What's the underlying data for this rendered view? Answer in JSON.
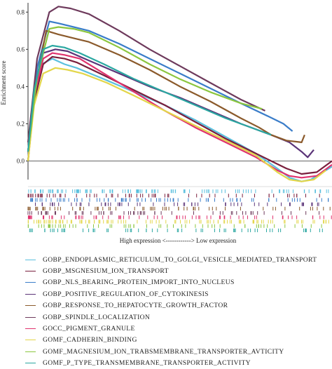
{
  "chart_data": {
    "type": "line",
    "title": "",
    "ylabel": "Enrichment score",
    "xlabel": "High expression <------------> Low expression",
    "ylim": [
      -0.1,
      0.85
    ],
    "y_ticks": [
      "0.0",
      "0.2",
      "0.4",
      "0.6",
      "0.8"
    ],
    "y_tick_values": [
      0.0,
      0.2,
      0.4,
      0.6,
      0.8
    ],
    "x_range": [
      0,
      1
    ],
    "zero_line": true,
    "legend_placement": "bottom",
    "series": [
      {
        "name": "GOBP_ENDOPLASMIC_RETICULUM_TO_GOLGI_VESICLE_MEDIATED_TRANSPORT",
        "color": "#5bc0de",
        "x": [
          0,
          0.02,
          0.045,
          0.08,
          0.12,
          0.16,
          0.25,
          0.35,
          0.45,
          0.55,
          0.65,
          0.75,
          0.82,
          0.86,
          0.9,
          0.93,
          0.97,
          1.0
        ],
        "y": [
          0,
          0.35,
          0.52,
          0.55,
          0.52,
          0.5,
          0.44,
          0.37,
          0.3,
          0.22,
          0.13,
          0.04,
          -0.04,
          -0.09,
          -0.11,
          -0.1,
          -0.06,
          -0.03
        ]
      },
      {
        "name": "GOBP_MSGNESIUM_ION_TRANSPORT",
        "color": "#7a1f3d",
        "x": [
          0,
          0.02,
          0.05,
          0.08,
          0.12,
          0.16,
          0.25,
          0.35,
          0.45,
          0.55,
          0.65,
          0.75,
          0.85,
          0.9,
          0.95,
          1.0
        ],
        "y": [
          0,
          0.32,
          0.52,
          0.56,
          0.55,
          0.53,
          0.46,
          0.38,
          0.3,
          0.21,
          0.12,
          0.04,
          -0.04,
          -0.07,
          -0.06,
          0.0
        ]
      },
      {
        "name": "GOBP_NLS_BEARING_PROTEIN_IMPORT_INTO_NUCLEUS",
        "color": "#3a7dc9",
        "x": [
          0,
          0.03,
          0.07,
          0.1,
          0.15,
          0.2,
          0.3,
          0.4,
          0.5,
          0.6,
          0.7,
          0.79,
          0.84,
          0.87
        ],
        "y": [
          0.05,
          0.5,
          0.75,
          0.74,
          0.72,
          0.7,
          0.63,
          0.55,
          0.47,
          0.39,
          0.31,
          0.24,
          0.2,
          0.16
        ]
      },
      {
        "name": "GOBP_POSITIVE_REGULATION_OF_CYTOKINESIS",
        "color": "#5b3478",
        "x": [
          0,
          0.02,
          0.05,
          0.09,
          0.13,
          0.2,
          0.3,
          0.4,
          0.5,
          0.6,
          0.7,
          0.8,
          0.86,
          0.9,
          0.92,
          0.94
        ],
        "y": [
          0.05,
          0.35,
          0.58,
          0.6,
          0.59,
          0.54,
          0.47,
          0.4,
          0.34,
          0.27,
          0.2,
          0.14,
          0.1,
          0.05,
          0.02,
          0.06
        ]
      },
      {
        "name": "GOBP_RESPONSE_TO_HEPATOCYTE_GROWTH_FACTOR",
        "color": "#8b5a2b",
        "x": [
          0,
          0.03,
          0.06,
          0.1,
          0.15,
          0.2,
          0.3,
          0.4,
          0.5,
          0.6,
          0.7,
          0.76,
          0.8,
          0.85,
          0.9,
          0.91
        ],
        "y": [
          0.05,
          0.45,
          0.7,
          0.68,
          0.66,
          0.64,
          0.57,
          0.49,
          0.4,
          0.32,
          0.23,
          0.18,
          0.14,
          0.11,
          0.1,
          0.14
        ]
      },
      {
        "name": "GOBP_SPINDLE_LOCALIZATION",
        "color": "#6e3a5c",
        "x": [
          0,
          0.03,
          0.07,
          0.1,
          0.14,
          0.2,
          0.3,
          0.4,
          0.5,
          0.6,
          0.7,
          0.78
        ],
        "y": [
          0.1,
          0.55,
          0.8,
          0.83,
          0.82,
          0.79,
          0.7,
          0.6,
          0.51,
          0.42,
          0.33,
          0.27
        ]
      },
      {
        "name": "GOCC_PIGMENT_GRANULE",
        "color": "#e0336e",
        "x": [
          0,
          0.02,
          0.05,
          0.08,
          0.12,
          0.17,
          0.25,
          0.35,
          0.45,
          0.55,
          0.65,
          0.75,
          0.82,
          0.86,
          0.9,
          0.95,
          1.0
        ],
        "y": [
          0.05,
          0.35,
          0.55,
          0.58,
          0.57,
          0.55,
          0.47,
          0.37,
          0.27,
          0.18,
          0.1,
          0.02,
          -0.05,
          -0.08,
          -0.09,
          -0.08,
          -0.02
        ]
      },
      {
        "name": "GOMF_CADHERIN_BINDING",
        "color": "#e3d64a",
        "x": [
          0,
          0.02,
          0.05,
          0.09,
          0.13,
          0.18,
          0.26,
          0.35,
          0.45,
          0.55,
          0.65,
          0.75,
          0.82,
          0.86,
          0.9,
          0.94,
          0.98
        ],
        "y": [
          0,
          0.3,
          0.47,
          0.5,
          0.49,
          0.47,
          0.42,
          0.35,
          0.27,
          0.19,
          0.11,
          0.03,
          -0.06,
          -0.1,
          -0.11,
          -0.1,
          -0.05
        ]
      },
      {
        "name": "GOMF_MAGNESIUM_ION_TRABSMEMBRANE_TRANSPORTER_AVTICITY",
        "color": "#8cc63f",
        "x": [
          0,
          0.03,
          0.07,
          0.1,
          0.15,
          0.2,
          0.3,
          0.4,
          0.5,
          0.6,
          0.7,
          0.77
        ],
        "y": [
          0.05,
          0.45,
          0.71,
          0.72,
          0.71,
          0.69,
          0.61,
          0.52,
          0.44,
          0.37,
          0.31,
          0.28
        ]
      },
      {
        "name": "GOMF_P_TYPE_TRANSMEMBRANE_TRANSPORTER_ACTIVITY",
        "color": "#2aa7a1",
        "x": [
          0,
          0.02,
          0.05,
          0.08,
          0.12,
          0.17,
          0.25,
          0.35,
          0.45,
          0.55,
          0.65,
          0.75,
          0.8
        ],
        "y": [
          0.05,
          0.38,
          0.6,
          0.62,
          0.61,
          0.58,
          0.52,
          0.44,
          0.37,
          0.3,
          0.23,
          0.17,
          0.14
        ]
      }
    ]
  },
  "legend": {
    "items": [
      {
        "label": "GOBP_ENDOPLASMIC_RETICULUM_TO_GOLGI_VESICLE_MEDIATED_TRANSPORT",
        "color": "#5bc0de"
      },
      {
        "label": "GOBP_MSGNESIUM_ION_TRANSPORT",
        "color": "#7a1f3d"
      },
      {
        "label": "GOBP_NLS_BEARING_PROTEIN_IMPORT_INTO_NUCLEUS",
        "color": "#3a7dc9"
      },
      {
        "label": "GOBP_POSITIVE_REGULATION_OF_CYTOKINESIS",
        "color": "#5b3478"
      },
      {
        "label": "GOBP_RESPONSE_TO_HEPATOCYTE_GROWTH_FACTOR",
        "color": "#8b5a2b"
      },
      {
        "label": "GOBP_SPINDLE_LOCALIZATION",
        "color": "#6e3a5c"
      },
      {
        "label": "GOCC_PIGMENT_GRANULE",
        "color": "#e0336e"
      },
      {
        "label": "GOMF_CADHERIN_BINDING",
        "color": "#e3d64a"
      },
      {
        "label": "GOMF_MAGNESIUM_ION_TRABSMEMBRANE_TRANSPORTER_AVTICITY",
        "color": "#8cc63f"
      },
      {
        "label": "GOMF_P_TYPE_TRANSMEMBRANE_TRANSPORTER_ACTIVITY",
        "color": "#2aa7a1"
      }
    ]
  }
}
